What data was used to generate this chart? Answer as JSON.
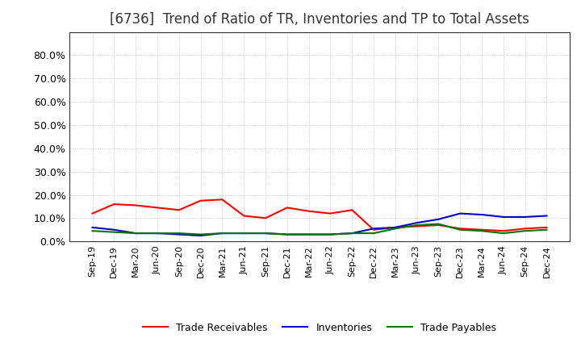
{
  "title": "[6736]  Trend of Ratio of TR, Inventories and TP to Total Assets",
  "x_labels": [
    "Sep-19",
    "Dec-19",
    "Mar-20",
    "Jun-20",
    "Sep-20",
    "Dec-20",
    "Mar-21",
    "Jun-21",
    "Sep-21",
    "Dec-21",
    "Mar-22",
    "Jun-22",
    "Sep-22",
    "Dec-22",
    "Mar-23",
    "Jun-23",
    "Sep-23",
    "Dec-23",
    "Mar-24",
    "Jun-24",
    "Sep-24",
    "Dec-24"
  ],
  "trade_receivables": [
    12.0,
    16.0,
    15.5,
    14.5,
    13.5,
    17.5,
    18.0,
    11.0,
    10.0,
    14.5,
    13.0,
    12.0,
    13.5,
    5.0,
    6.0,
    6.5,
    7.0,
    5.5,
    5.0,
    4.5,
    5.5,
    6.0
  ],
  "inventories": [
    6.0,
    5.0,
    3.5,
    3.5,
    3.0,
    2.5,
    3.5,
    3.5,
    3.5,
    3.0,
    3.0,
    3.0,
    3.5,
    5.5,
    6.0,
    8.0,
    9.5,
    12.0,
    11.5,
    10.5,
    10.5,
    11.0
  ],
  "trade_payables": [
    4.5,
    4.0,
    3.5,
    3.5,
    3.5,
    3.0,
    3.5,
    3.5,
    3.5,
    3.0,
    3.0,
    3.0,
    3.5,
    3.5,
    5.5,
    7.0,
    7.5,
    5.0,
    4.5,
    3.5,
    4.5,
    5.0
  ],
  "tr_color": "#ff0000",
  "inv_color": "#0000cc",
  "tp_color": "#007700",
  "ylim_max": 90,
  "yticks": [
    0,
    10,
    20,
    30,
    40,
    50,
    60,
    70,
    80
  ],
  "ytick_labels": [
    "0.0%",
    "10.0%",
    "20.0%",
    "30.0%",
    "40.0%",
    "50.0%",
    "60.0%",
    "70.0%",
    "80.0%"
  ],
  "legend_labels": [
    "Trade Receivables",
    "Inventories",
    "Trade Payables"
  ],
  "bg_color": "#ffffff",
  "plot_bg_color": "#ffffff",
  "grid_color": "#999999",
  "line_width": 1.5,
  "title_fontsize": 12,
  "tick_fontsize": 9,
  "legend_fontsize": 9
}
